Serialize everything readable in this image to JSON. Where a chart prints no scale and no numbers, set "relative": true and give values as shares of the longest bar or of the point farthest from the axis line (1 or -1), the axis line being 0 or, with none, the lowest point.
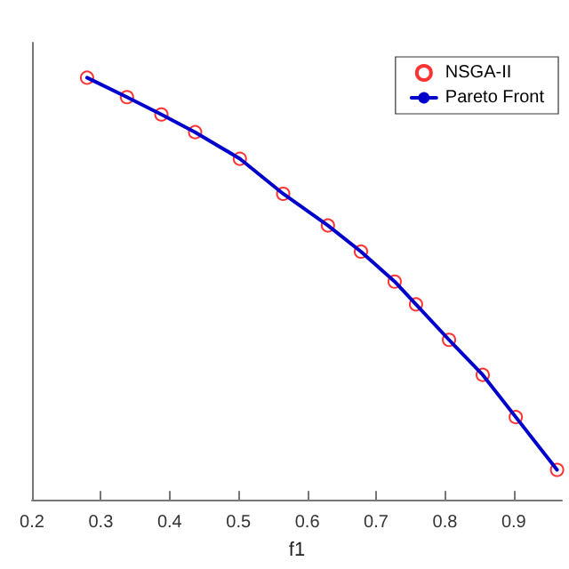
{
  "chart_data": {
    "type": "scatter",
    "relative": true,
    "xlabel": "f1",
    "xlim": [
      0.2,
      0.97
    ],
    "xticks": [
      0.2,
      0.3,
      0.4,
      0.5,
      0.6,
      0.7,
      0.8,
      0.9
    ],
    "grid": false,
    "legend": "top right",
    "series": [
      {
        "name": "NSGA-II",
        "marker": "circle",
        "color": "#ff0000",
        "x": [
          0.28,
          0.338,
          0.388,
          0.437,
          0.502,
          0.565,
          0.63,
          0.678,
          0.727,
          0.758,
          0.806,
          0.855,
          0.903,
          0.963
        ],
        "values": [
          1.0,
          0.954,
          0.913,
          0.871,
          0.808,
          0.725,
          0.65,
          0.588,
          0.517,
          0.463,
          0.379,
          0.296,
          0.196,
          0.071
        ]
      },
      {
        "name": "Pareto Front",
        "type": "line",
        "marker": "none",
        "line_style": "solid",
        "color": "#0000cc",
        "x": [
          0.28,
          0.338,
          0.388,
          0.437,
          0.502,
          0.565,
          0.63,
          0.678,
          0.727,
          0.758,
          0.806,
          0.855,
          0.903,
          0.963
        ],
        "values": [
          1.0,
          0.954,
          0.913,
          0.871,
          0.808,
          0.725,
          0.65,
          0.588,
          0.517,
          0.463,
          0.379,
          0.296,
          0.196,
          0.071
        ]
      }
    ]
  }
}
